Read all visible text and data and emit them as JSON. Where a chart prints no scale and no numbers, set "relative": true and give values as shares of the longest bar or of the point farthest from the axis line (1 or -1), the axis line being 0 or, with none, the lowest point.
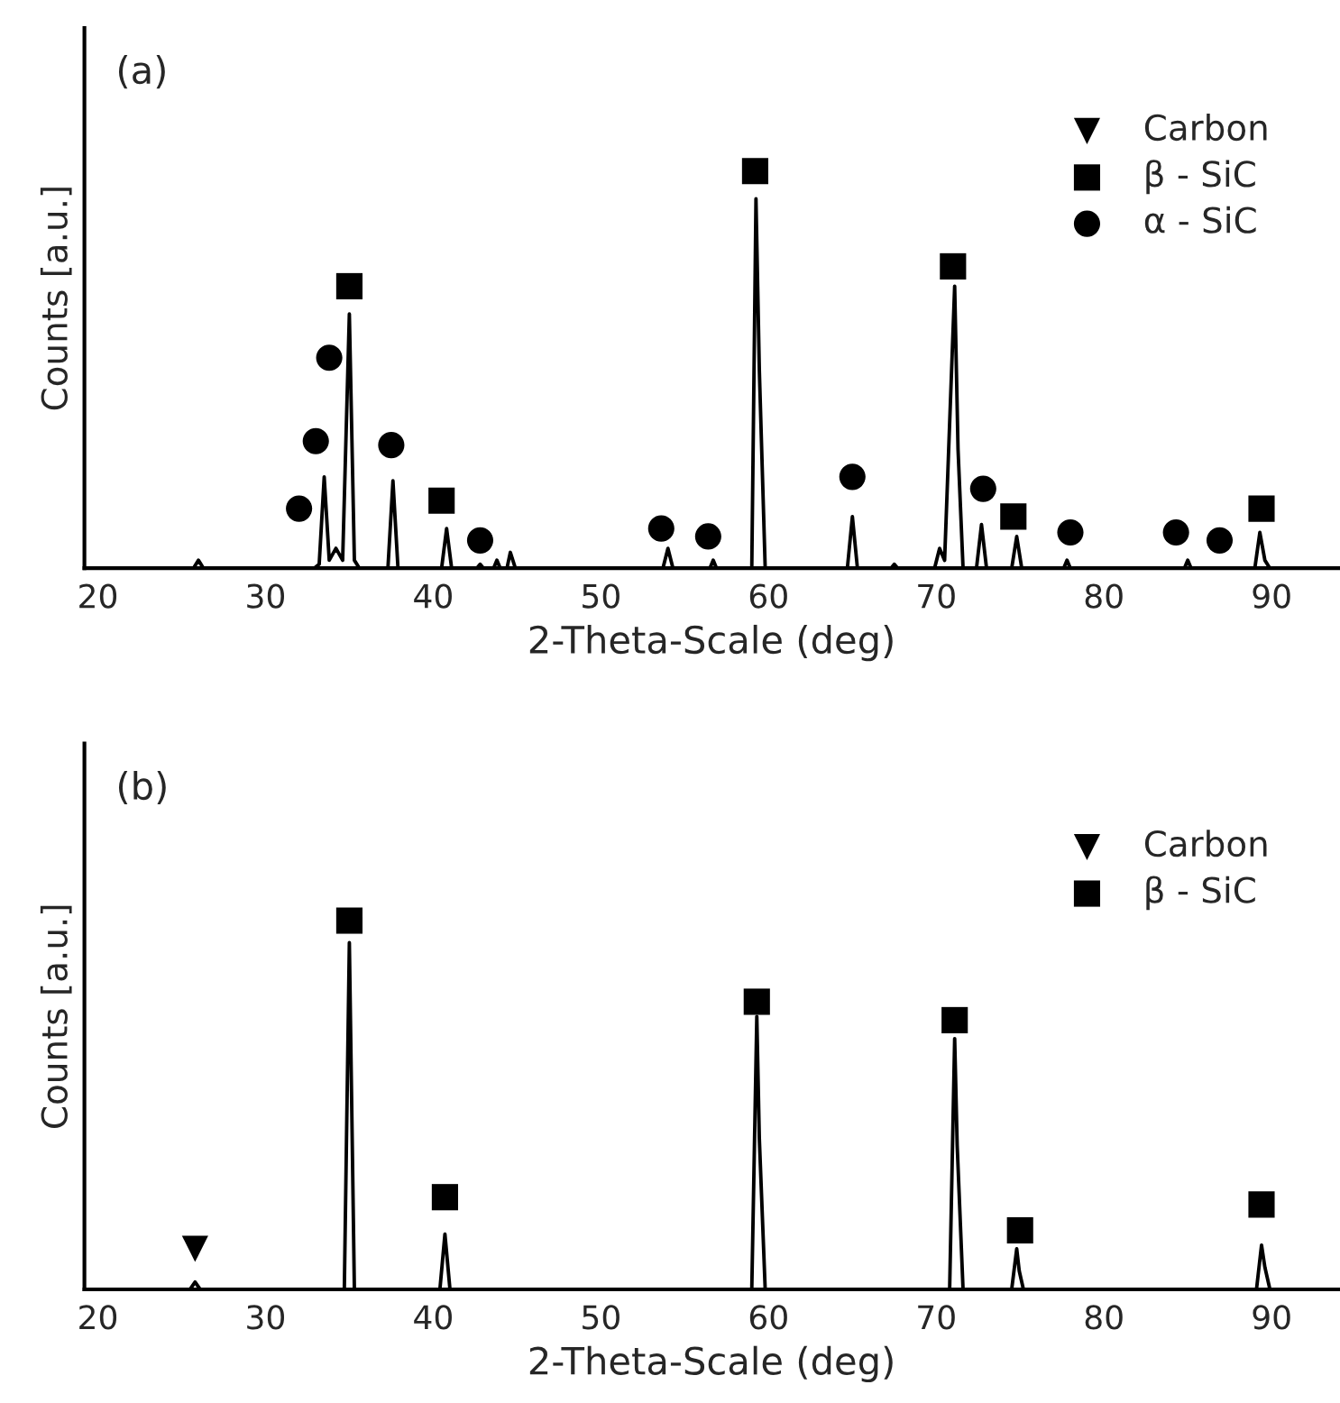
{
  "chart_data": [
    {
      "type": "line",
      "relative": true,
      "annotations": [
        "(a)"
      ],
      "xlabel": "2-Theta-Scale (deg)",
      "ylabel": "Counts [a.u.]",
      "xlim": [
        19.2,
        94
      ],
      "xticks": [
        20,
        30,
        40,
        50,
        60,
        70,
        80,
        90
      ],
      "legend": "top right",
      "grid": false,
      "series": [
        {
          "color": "#000000",
          "x": [
            19.5,
            25.7,
            26.0,
            26.3,
            32.9,
            33.2,
            33.5,
            33.8,
            34.2,
            34.6,
            35.0,
            35.3,
            35.6,
            37.3,
            37.6,
            37.9,
            40.5,
            40.8,
            41.1,
            42.6,
            42.8,
            43.0,
            43.6,
            43.8,
            44.0,
            44.4,
            44.6,
            44.9,
            53.7,
            54.0,
            54.3,
            56.5,
            56.7,
            56.9,
            59.0,
            59.25,
            59.45,
            59.8,
            64.7,
            65.0,
            65.3,
            67.3,
            67.5,
            67.7,
            69.9,
            70.2,
            70.5,
            71.1,
            71.3,
            71.6,
            72.4,
            72.7,
            73.0,
            74.5,
            74.8,
            75.1,
            77.6,
            77.8,
            78.0,
            84.8,
            85.0,
            85.2,
            89.0,
            89.3,
            89.6,
            89.9,
            94.0
          ],
          "values": [
            0,
            0,
            0.02,
            0,
            0,
            0.01,
            0.23,
            0.02,
            0.05,
            0.02,
            0.64,
            0.02,
            0,
            0,
            0.22,
            0,
            0,
            0.1,
            0,
            0,
            0.01,
            0,
            0,
            0.02,
            0,
            0,
            0.04,
            0,
            0,
            0.05,
            0,
            0,
            0.02,
            0,
            0,
            0.93,
            0.5,
            0,
            0,
            0.13,
            0,
            0,
            0.01,
            0,
            0,
            0.05,
            0.02,
            0.71,
            0.3,
            0,
            0,
            0.11,
            0,
            0,
            0.08,
            0,
            0,
            0.02,
            0,
            0,
            0.02,
            0,
            0,
            0.09,
            0.02,
            0,
            0
          ]
        },
        {
          "type": "scatter",
          "name": "Carbon",
          "marker": "triangle",
          "color": "#000000"
        },
        {
          "type": "scatter",
          "name": "β - SiC",
          "marker": "square",
          "color": "#000000",
          "x": [
            35.0,
            40.5,
            59.2,
            71.0,
            74.6,
            89.4
          ],
          "values": [
            0.71,
            0.17,
            1.0,
            0.76,
            0.13,
            0.15
          ]
        },
        {
          "type": "scatter",
          "name": "α - SiC",
          "marker": "circle",
          "color": "#000000",
          "x": [
            32.0,
            33.0,
            33.8,
            37.5,
            42.8,
            53.6,
            56.4,
            65.0,
            72.8,
            78.0,
            84.3,
            86.9
          ],
          "values": [
            0.15,
            0.32,
            0.53,
            0.31,
            0.07,
            0.1,
            0.08,
            0.23,
            0.2,
            0.09,
            0.09,
            0.07
          ]
        }
      ]
    },
    {
      "type": "line",
      "relative": true,
      "annotations": [
        "(b)"
      ],
      "xlabel": "2-Theta-Scale (deg)",
      "ylabel": "Counts [a.u.]",
      "xlim": [
        19.2,
        94
      ],
      "xticks": [
        20,
        30,
        40,
        50,
        60,
        70,
        80,
        90
      ],
      "legend": "top right",
      "grid": false,
      "series": [
        {
          "color": "#000000",
          "x": [
            19.5,
            25.5,
            25.8,
            26.1,
            34.7,
            35.0,
            35.3,
            40.4,
            40.7,
            41.0,
            59.0,
            59.3,
            59.45,
            59.8,
            70.8,
            71.1,
            71.25,
            71.6,
            74.5,
            74.8,
            74.95,
            75.2,
            89.1,
            89.4,
            89.6,
            89.9,
            94.0
          ],
          "values": [
            0,
            0,
            0.02,
            0,
            0,
            0.94,
            0,
            0,
            0.15,
            0,
            0,
            0.74,
            0.41,
            0,
            0,
            0.68,
            0.39,
            0,
            0,
            0.11,
            0.05,
            0,
            0,
            0.12,
            0.06,
            0,
            0
          ]
        },
        {
          "type": "scatter",
          "name": "Carbon",
          "marker": "triangle",
          "color": "#000000",
          "x": [
            25.8
          ],
          "values": [
            0.11
          ]
        },
        {
          "type": "scatter",
          "name": "β - SiC",
          "marker": "square",
          "color": "#000000",
          "x": [
            35.0,
            40.7,
            59.3,
            71.1,
            75.0,
            89.4
          ],
          "values": [
            1.0,
            0.25,
            0.78,
            0.73,
            0.16,
            0.23
          ]
        }
      ]
    }
  ]
}
